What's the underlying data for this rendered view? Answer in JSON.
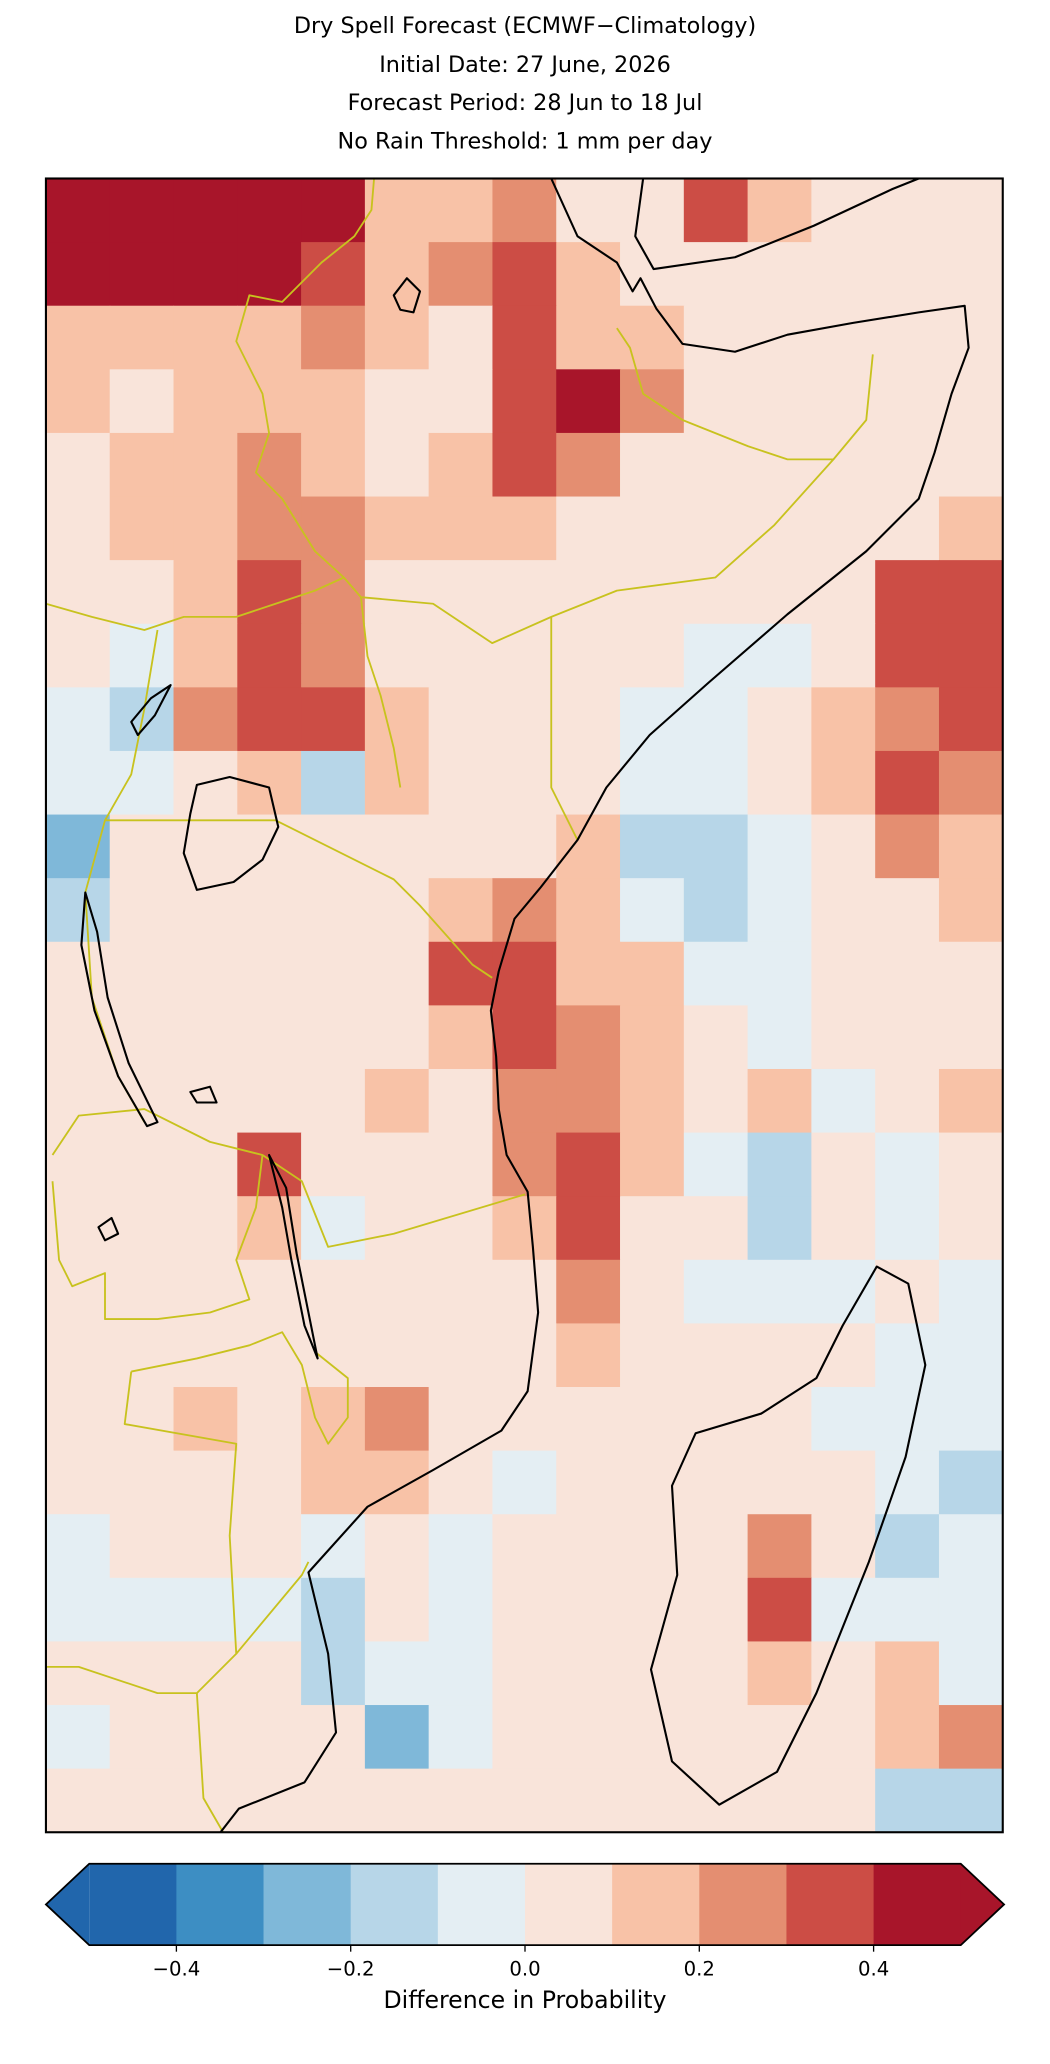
{
  "chart_data": {
    "type": "gridded-map",
    "title": [
      "Dry Spell Forecast (ECMWF−Climatology)",
      "Initial Date: 27 June, 2026",
      "Forecast Period: 28 Jun to 18 Jul",
      "No Rain Threshold: 1 mm per day"
    ],
    "colorbar_label": "Difference in Probability",
    "boundaries": [
      -0.5,
      -0.4,
      -0.3,
      -0.2,
      -0.1,
      0,
      0.1,
      0.2,
      0.3,
      0.4,
      0.5
    ],
    "colors": [
      "#2166ac",
      "#3d8ec3",
      "#7fb8d9",
      "#b7d6e8",
      "#e4eef3",
      "#f9e4da",
      "#f8c2a7",
      "#e48e71",
      "#cc4d45",
      "#a8152a"
    ],
    "extend": "both",
    "ticks": [
      {
        "value": -0.4,
        "label": "−0.4"
      },
      {
        "value": -0.2,
        "label": "−0.2"
      },
      {
        "value": 0,
        "label": "0.0"
      },
      0.2,
      0.4
    ],
    "values": [
      [
        0.45,
        0.45,
        0.45,
        0.45,
        0.45,
        0.15,
        0.15,
        0.25,
        0.05,
        0.05,
        0.35,
        0.15,
        0.05,
        0.05,
        0.05
      ],
      [
        0.45,
        0.45,
        0.45,
        0.45,
        0.35,
        0.15,
        0.25,
        0.35,
        0.15,
        0.05,
        0.05,
        0.05,
        0.05,
        0.05,
        0.05
      ],
      [
        0.15,
        0.15,
        0.15,
        0.15,
        0.25,
        0.15,
        0.05,
        0.35,
        0.15,
        0.15,
        0.05,
        0.05,
        0.05,
        0.05,
        0.05
      ],
      [
        0.15,
        0.05,
        0.15,
        0.15,
        0.15,
        0.05,
        0.05,
        0.35,
        0.45,
        0.25,
        0.05,
        0.05,
        0.05,
        0.05,
        0.05
      ],
      [
        0.05,
        0.15,
        0.15,
        0.25,
        0.15,
        0.05,
        0.15,
        0.35,
        0.25,
        0.05,
        0.05,
        0.05,
        0.05,
        0.05,
        0.05
      ],
      [
        0.05,
        0.15,
        0.15,
        0.25,
        0.25,
        0.15,
        0.15,
        0.15,
        0.05,
        0.05,
        0.05,
        0.05,
        0.05,
        0.05,
        0.15
      ],
      [
        0.05,
        0.05,
        0.15,
        0.35,
        0.25,
        0.05,
        0.05,
        0.05,
        0.05,
        0.05,
        0.05,
        0.05,
        0.05,
        0.35,
        0.35
      ],
      [
        0.05,
        -0.05,
        0.15,
        0.35,
        0.25,
        0.05,
        0.05,
        0.05,
        0.05,
        0.05,
        -0.05,
        -0.05,
        0.05,
        0.35,
        0.35
      ],
      [
        -0.05,
        -0.15,
        0.25,
        0.35,
        0.35,
        0.15,
        0.05,
        0.05,
        0.05,
        -0.05,
        -0.05,
        0.05,
        0.15,
        0.25,
        0.35
      ],
      [
        -0.05,
        -0.05,
        0.05,
        0.15,
        -0.15,
        0.15,
        0.05,
        0.05,
        0.05,
        -0.05,
        -0.05,
        0.05,
        0.15,
        0.35,
        0.25
      ],
      [
        -0.25,
        0.05,
        0.05,
        0.05,
        0.05,
        0.05,
        0.05,
        0.05,
        0.15,
        -0.15,
        -0.15,
        -0.05,
        0.05,
        0.25,
        0.15
      ],
      [
        -0.15,
        0.05,
        0.05,
        0.05,
        0.05,
        0.05,
        0.15,
        0.25,
        0.15,
        -0.05,
        -0.15,
        -0.05,
        0.05,
        0.05,
        0.15
      ],
      [
        0.05,
        0.05,
        0.05,
        0.05,
        0.05,
        0.05,
        0.35,
        0.35,
        0.15,
        0.15,
        -0.05,
        -0.05,
        0.05,
        0.05,
        0.05
      ],
      [
        0.05,
        0.05,
        0.05,
        0.05,
        0.05,
        0.05,
        0.15,
        0.35,
        0.25,
        0.15,
        0.05,
        -0.05,
        0.05,
        0.05,
        0.05
      ],
      [
        0.05,
        0.05,
        0.05,
        0.05,
        0.05,
        0.15,
        0.05,
        0.25,
        0.25,
        0.15,
        0.05,
        0.15,
        -0.05,
        0.05,
        0.15
      ],
      [
        0.05,
        0.05,
        0.05,
        0.35,
        0.05,
        0.05,
        0.05,
        0.25,
        0.35,
        0.15,
        -0.05,
        -0.15,
        0.05,
        -0.05,
        0.05
      ],
      [
        0.05,
        0.05,
        0.05,
        0.15,
        -0.05,
        0.05,
        0.05,
        0.15,
        0.35,
        0.05,
        0.05,
        -0.15,
        0.05,
        -0.05,
        0.05
      ],
      [
        0.05,
        0.05,
        0.05,
        0.05,
        0.05,
        0.05,
        0.05,
        0.05,
        0.25,
        0.05,
        -0.05,
        -0.05,
        -0.05,
        0.05,
        -0.05
      ],
      [
        0.05,
        0.05,
        0.05,
        0.05,
        0.05,
        0.05,
        0.05,
        0.05,
        0.15,
        0.05,
        0.05,
        0.05,
        0.05,
        -0.05,
        -0.05
      ],
      [
        0.05,
        0.05,
        0.15,
        0.05,
        0.15,
        0.25,
        0.05,
        0.05,
        0.05,
        0.05,
        0.05,
        0.05,
        -0.05,
        -0.05,
        -0.05
      ],
      [
        0.05,
        0.05,
        0.05,
        0.05,
        0.15,
        0.15,
        0.05,
        -0.05,
        0.05,
        0.05,
        0.05,
        0.05,
        0.05,
        -0.05,
        -0.15
      ],
      [
        -0.05,
        0.05,
        0.05,
        0.05,
        -0.05,
        0.05,
        -0.05,
        0.05,
        0.05,
        0.05,
        0.05,
        0.25,
        0.05,
        -0.15,
        -0.05
      ],
      [
        -0.05,
        -0.05,
        -0.05,
        -0.05,
        -0.15,
        0.05,
        -0.05,
        0.05,
        0.05,
        0.05,
        0.05,
        0.35,
        -0.05,
        -0.05,
        -0.05
      ],
      [
        0.05,
        0.05,
        0.05,
        0.05,
        -0.15,
        -0.05,
        -0.05,
        0.05,
        0.05,
        0.05,
        0.05,
        0.15,
        0.05,
        0.15,
        -0.05
      ],
      [
        -0.05,
        0.05,
        0.05,
        0.05,
        0.05,
        -0.25,
        -0.05,
        0.05,
        0.05,
        0.05,
        0.05,
        0.05,
        0.05,
        0.15,
        0.25
      ],
      [
        0.05,
        0.05,
        0.05,
        0.05,
        0.05,
        0.05,
        0.05,
        0.05,
        0.05,
        0.05,
        0.05,
        0.05,
        0.05,
        -0.15,
        -0.15
      ]
    ]
  }
}
